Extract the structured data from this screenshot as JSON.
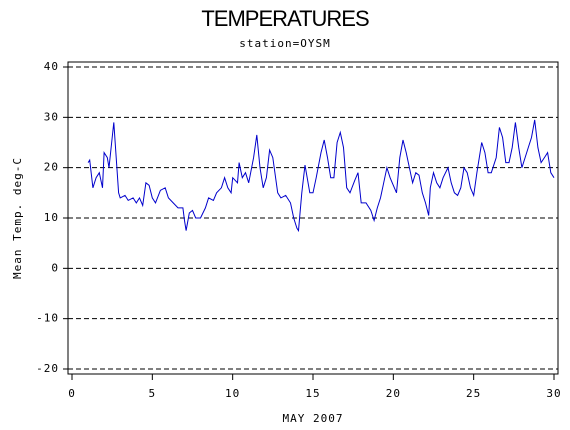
{
  "chart_data": {
    "type": "line",
    "title": "TEMPERATURES",
    "subtitle": "station=OYSM",
    "y_label": "Mean Temp. deg-C",
    "x_label": "MAY 2007",
    "xlim": [
      0,
      30
    ],
    "xticks": [
      0,
      5,
      10,
      15,
      20,
      25,
      30
    ],
    "ylim": [
      -20,
      40
    ],
    "yticks": [
      -20,
      -10,
      0,
      10,
      20,
      30,
      40
    ],
    "grid": true,
    "x": [
      1.0,
      1.1,
      1.3,
      1.5,
      1.7,
      1.9,
      2.0,
      2.2,
      2.3,
      2.5,
      2.6,
      2.75,
      2.9,
      3.0,
      3.3,
      3.5,
      3.8,
      4.0,
      4.2,
      4.4,
      4.6,
      4.8,
      5.0,
      5.2,
      5.5,
      5.8,
      6.0,
      6.3,
      6.6,
      6.9,
      7.0,
      7.1,
      7.3,
      7.5,
      7.7,
      8.0,
      8.3,
      8.5,
      8.8,
      9.0,
      9.3,
      9.5,
      9.7,
      9.9,
      10.0,
      10.3,
      10.4,
      10.6,
      10.8,
      11.0,
      11.3,
      11.5,
      11.7,
      11.9,
      12.1,
      12.3,
      12.5,
      12.8,
      13.0,
      13.3,
      13.6,
      13.8,
      14.0,
      14.1,
      14.3,
      14.5,
      14.8,
      15.0,
      15.2,
      15.5,
      15.7,
      15.9,
      16.1,
      16.3,
      16.5,
      16.7,
      16.9,
      17.1,
      17.3,
      17.6,
      17.8,
      18.0,
      18.3,
      18.6,
      18.8,
      19.0,
      19.2,
      19.4,
      19.6,
      19.8,
      20.0,
      20.2,
      20.4,
      20.6,
      20.8,
      21.0,
      21.2,
      21.4,
      21.6,
      21.8,
      22.0,
      22.2,
      22.3,
      22.5,
      22.7,
      22.9,
      23.1,
      23.4,
      23.6,
      23.8,
      24.0,
      24.2,
      24.4,
      24.6,
      24.8,
      25.0,
      25.2,
      25.5,
      25.7,
      25.9,
      26.1,
      26.4,
      26.6,
      26.8,
      27.0,
      27.2,
      27.4,
      27.6,
      27.8,
      28.0,
      28.2,
      28.4,
      28.6,
      28.8,
      29.0,
      29.2,
      29.4,
      29.6,
      29.8,
      30.0
    ],
    "series": [
      {
        "color": "#0000cc",
        "values": [
          21,
          21.5,
          16,
          18,
          19,
          16,
          23,
          22,
          20,
          26,
          29,
          22,
          15,
          14,
          14.5,
          13.5,
          14,
          13,
          14,
          12.5,
          17,
          16.5,
          14,
          13,
          15.5,
          16,
          14,
          13,
          12,
          12,
          9.5,
          7.5,
          11,
          11.5,
          10,
          10,
          12,
          14,
          13.5,
          15,
          16,
          18,
          16,
          15,
          18,
          17,
          21,
          18,
          19,
          17,
          22,
          26.5,
          20,
          16,
          18,
          23.5,
          22,
          15,
          14,
          14.5,
          13,
          10,
          8,
          7.5,
          15,
          20.5,
          15,
          15,
          18,
          23,
          25.5,
          22,
          18,
          18,
          25,
          27,
          24,
          16,
          15,
          17.5,
          19,
          13,
          13,
          11.5,
          9.5,
          12,
          14,
          17,
          20,
          18,
          16.5,
          15,
          22,
          25.5,
          23,
          20,
          17,
          19,
          18.5,
          15,
          13,
          10.5,
          16,
          19,
          17,
          16,
          18,
          20,
          17,
          15,
          14.5,
          16,
          20,
          19,
          16,
          14.5,
          19,
          25,
          23,
          19,
          19,
          22,
          28,
          26,
          21,
          21,
          24,
          29,
          24,
          20,
          22,
          24,
          26,
          29.5,
          24,
          21,
          22,
          23,
          19,
          18
        ]
      }
    ]
  }
}
